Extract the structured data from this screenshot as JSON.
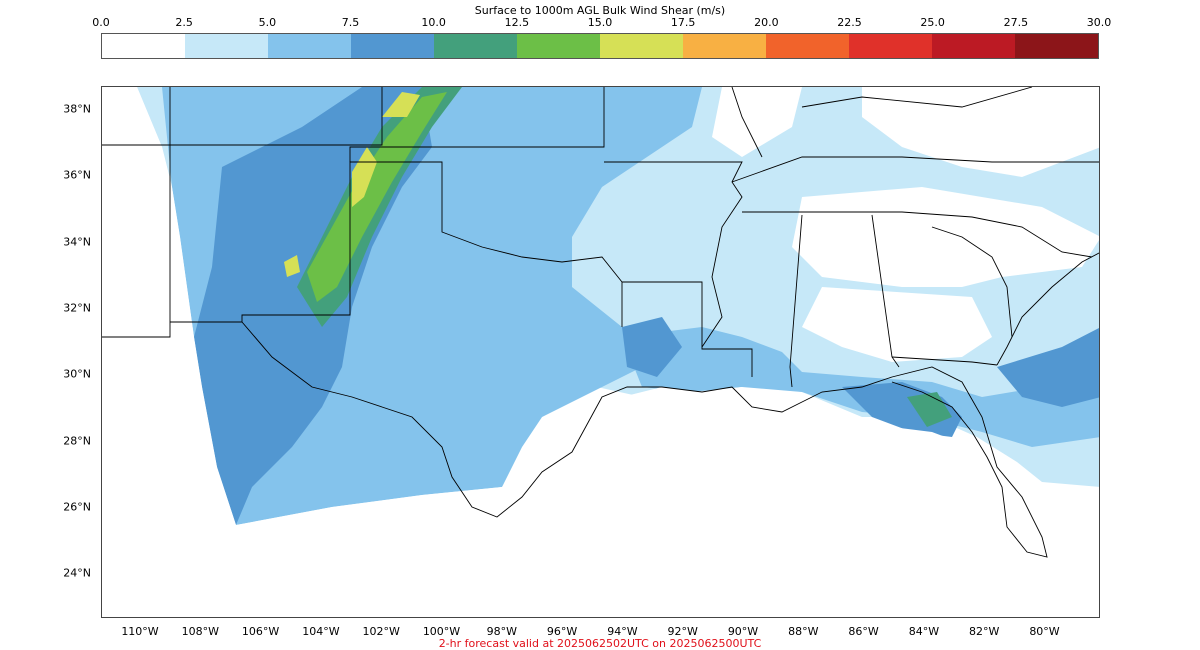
{
  "colorbar": {
    "title": "Surface to 1000m AGL Bulk Wind Shear (m/s)",
    "ticks": [
      "0.0",
      "2.5",
      "5.0",
      "7.5",
      "10.0",
      "12.5",
      "15.0",
      "17.5",
      "20.0",
      "22.5",
      "25.0",
      "27.5",
      "30.0"
    ],
    "colors": [
      "#ffffff",
      "#c6e8f8",
      "#84c3ec",
      "#5297d1",
      "#43a07c",
      "#6cbf47",
      "#d6e056",
      "#f8b043",
      "#f1632b",
      "#e0312a",
      "#bc1a24",
      "#8c1519"
    ]
  },
  "map": {
    "lat_labels": [
      "38°N",
      "36°N",
      "34°N",
      "32°N",
      "30°N",
      "28°N",
      "26°N",
      "24°N"
    ],
    "lon_labels": [
      "110°W",
      "108°W",
      "106°W",
      "104°W",
      "102°W",
      "100°W",
      "98°W",
      "96°W",
      "94°W",
      "92°W",
      "90°W",
      "88°W",
      "86°W",
      "84°W",
      "82°W",
      "80°W"
    ],
    "colors": {
      "border": "#000000",
      "light": "#c6e8f8",
      "mid": "#84c3ec",
      "dark": "#5297d1",
      "teal": "#43a07c",
      "green": "#6cbf47",
      "yellow": "#d6e056"
    }
  },
  "footer": {
    "text": "2-hr forecast valid at 2025062502UTC on 2025062500UTC",
    "color": "#e0101a"
  }
}
